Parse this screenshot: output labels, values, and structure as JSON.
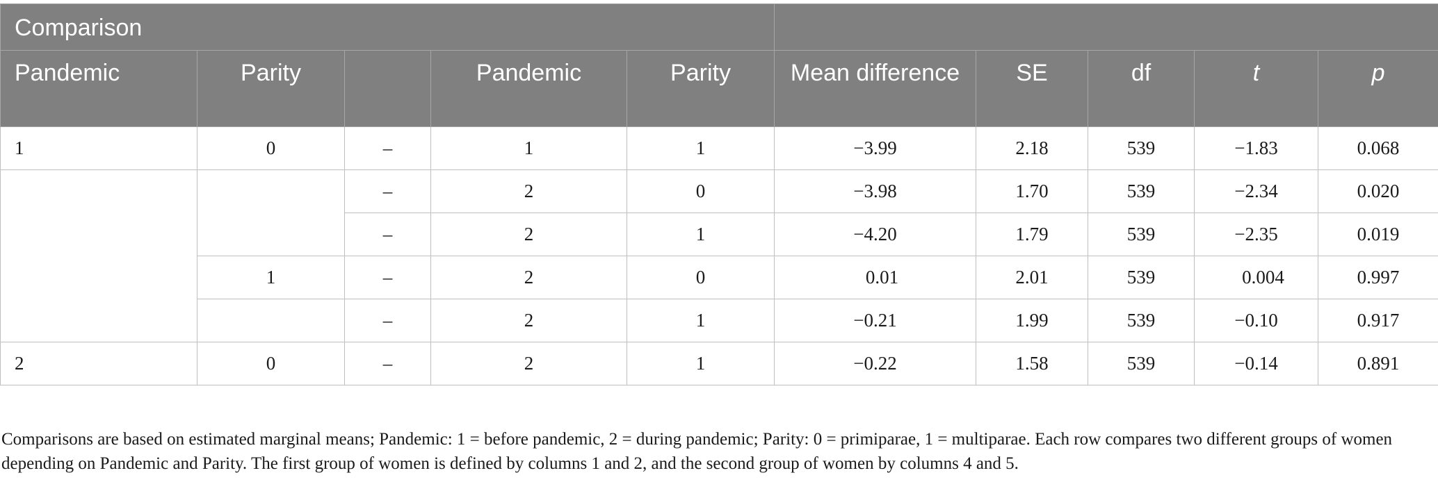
{
  "table": {
    "group_header": "Comparison",
    "columns": [
      "Pandemic",
      "Parity",
      "",
      "Pandemic",
      "Parity",
      "Mean difference",
      "SE",
      "df",
      "t",
      "p"
    ],
    "rows": [
      [
        "1",
        "0",
        "–",
        "1",
        "1",
        "−3.99",
        "2.18",
        "539",
        "−1.83",
        "0.068"
      ],
      [
        "",
        "",
        "–",
        "2",
        "0",
        "−3.98",
        "1.70",
        "539",
        "−2.34",
        "0.020"
      ],
      [
        "",
        "",
        "–",
        "2",
        "1",
        "−4.20",
        "1.79",
        "539",
        "−2.35",
        "0.019"
      ],
      [
        "",
        "1",
        "–",
        "2",
        "0",
        "0.01",
        "2.01",
        "539",
        "0.004",
        "0.997"
      ],
      [
        "",
        "",
        "–",
        "2",
        "1",
        "−0.21",
        "1.99",
        "539",
        "−0.10",
        "0.917"
      ],
      [
        "2",
        "0",
        "–",
        "2",
        "1",
        "−0.22",
        "1.58",
        "539",
        "−0.14",
        "0.891"
      ]
    ]
  },
  "footnote": "Comparisons are based on estimated marginal means; Pandemic: 1 = before pandemic, 2 = during pandemic; Parity: 0 = primiparae, 1 = multiparae. Each row compares two different groups of women depending on Pandemic and Parity. The first group of women is defined by columns 1 and 2, and the second group of women by columns 4 and 5."
}
